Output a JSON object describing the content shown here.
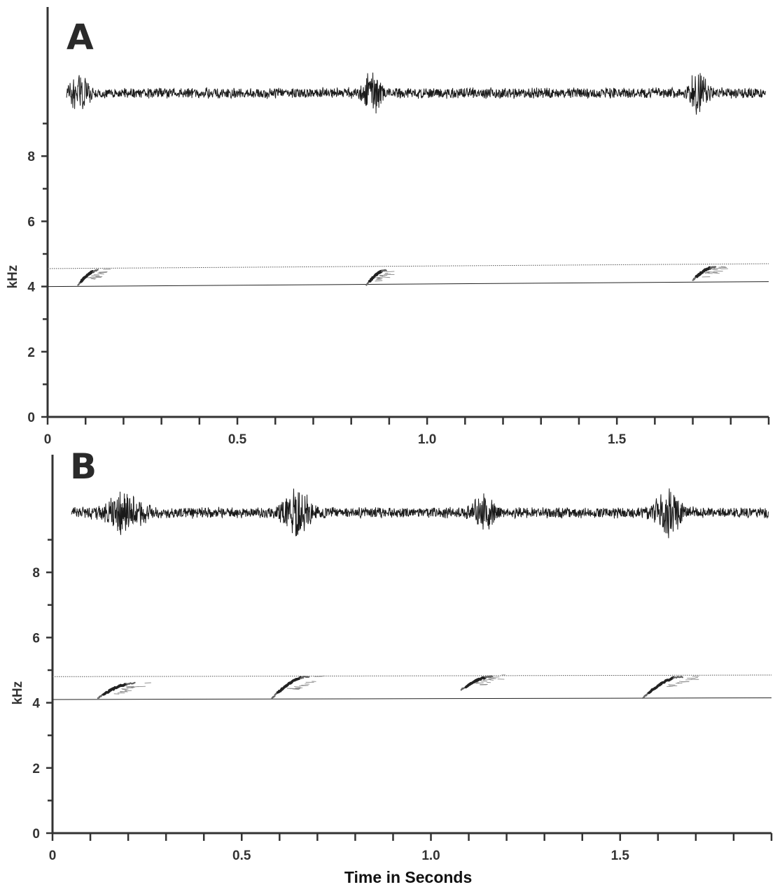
{
  "chart_data": [
    {
      "type": "spectrogram",
      "panel_label": "A",
      "ylabel": "kHz",
      "xlabel": "",
      "xlim": [
        0,
        1.9
      ],
      "ylim": [
        0,
        10
      ],
      "yticks": [
        "0",
        "2",
        "4",
        "6",
        "8"
      ],
      "xticks": [
        "0",
        "0.5",
        "1.0",
        "1.5"
      ],
      "reference_lines": {
        "lower_khz": [
          4.0,
          4.15
        ],
        "upper_khz": [
          4.55,
          4.7
        ]
      },
      "notes": [
        {
          "start": 0.08,
          "end": 0.15,
          "f_start": 4.05,
          "f_end": 4.5
        },
        {
          "start": 0.84,
          "end": 0.91,
          "f_start": 4.05,
          "f_end": 4.5
        },
        {
          "start": 1.7,
          "end": 1.78,
          "f_start": 4.2,
          "f_end": 4.6
        }
      ],
      "waveform_bursts": [
        {
          "center": 0.085,
          "width": 0.05,
          "amp": 1.0
        },
        {
          "center": 0.855,
          "width": 0.05,
          "amp": 0.95
        },
        {
          "center": 1.715,
          "width": 0.05,
          "amp": 1.0
        }
      ]
    },
    {
      "type": "spectrogram",
      "panel_label": "B",
      "ylabel": "kHz",
      "xlabel": "Time  in  Seconds",
      "xlim": [
        0,
        1.9
      ],
      "ylim": [
        0,
        10
      ],
      "yticks": [
        "0",
        "2",
        "4",
        "6",
        "8"
      ],
      "xticks": [
        "0",
        "0.5",
        "1.0",
        "1.5"
      ],
      "reference_lines": {
        "lower_khz": [
          4.1,
          4.15
        ],
        "upper_khz": [
          4.8,
          4.85
        ]
      },
      "notes": [
        {
          "start": 0.12,
          "end": 0.25,
          "f_start": 4.15,
          "f_end": 4.6
        },
        {
          "start": 0.58,
          "end": 0.71,
          "f_start": 4.15,
          "f_end": 4.8
        },
        {
          "start": 1.08,
          "end": 1.19,
          "f_start": 4.4,
          "f_end": 4.8
        },
        {
          "start": 1.56,
          "end": 1.7,
          "f_start": 4.15,
          "f_end": 4.8
        }
      ],
      "waveform_bursts": [
        {
          "center": 0.19,
          "width": 0.11,
          "amp": 0.85
        },
        {
          "center": 0.645,
          "width": 0.08,
          "amp": 1.0
        },
        {
          "center": 1.14,
          "width": 0.06,
          "amp": 0.8
        },
        {
          "center": 1.63,
          "width": 0.08,
          "amp": 0.95
        }
      ]
    }
  ]
}
